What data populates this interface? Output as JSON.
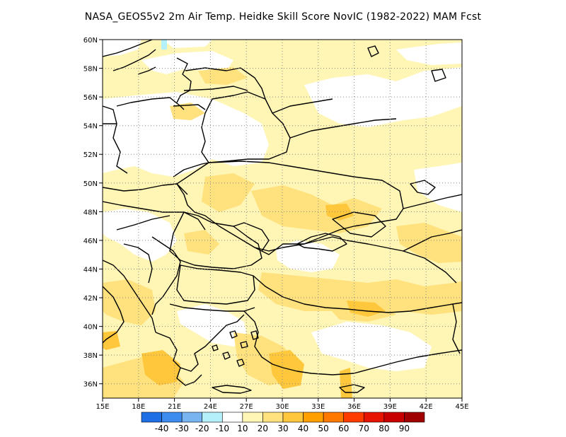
{
  "title": "NASA_GEOS5v2  2m Air Temp. Heidke Skill Score NovIC (1982-2022) MAM Fcst",
  "map": {
    "lon_range": [
      15,
      45
    ],
    "lat_range": [
      35,
      60
    ],
    "lon_ticks": [
      "15E",
      "18E",
      "21E",
      "24E",
      "27E",
      "30E",
      "33E",
      "36E",
      "39E",
      "42E",
      "45E"
    ],
    "lat_ticks": [
      "36N",
      "38N",
      "40N",
      "42N",
      "44N",
      "46N",
      "48N",
      "50N",
      "52N",
      "54N",
      "56N",
      "58N",
      "60N"
    ],
    "grid": "dotted",
    "ocean_color": "#ffffff"
  },
  "colorbar": {
    "colors": [
      "#1e6ee6",
      "#3c8cf0",
      "#78b4f0",
      "#b4f0fa",
      "#ffffff",
      "#fff5b4",
      "#ffe17d",
      "#ffc83c",
      "#ffa000",
      "#ff7800",
      "#ff3c00",
      "#e61400",
      "#c80000",
      "#a00000"
    ],
    "labels": [
      "-40",
      "-30",
      "-20",
      "-10",
      "10",
      "20",
      "30",
      "40",
      "50",
      "60",
      "70",
      "80",
      "90"
    ]
  },
  "chart_data": {
    "type": "heatmap",
    "title": "NASA_GEOS5v2  2m Air Temp. Heidke Skill Score NovIC (1982-2022) MAM Fcst",
    "x_axis": "longitude",
    "y_axis": "latitude",
    "xlim": [
      15,
      45
    ],
    "ylim": [
      35,
      60
    ],
    "levels": [
      -40,
      -30,
      -20,
      -10,
      10,
      20,
      30,
      40,
      50,
      60,
      70,
      80,
      90
    ],
    "dominant_range": "10-30 over most land areas; 30-40 over southern Greece, Aegean and Turkey coast; below 10 (white) over Poland, Belarus, northwest Balkans and parts of the Aegean"
  }
}
